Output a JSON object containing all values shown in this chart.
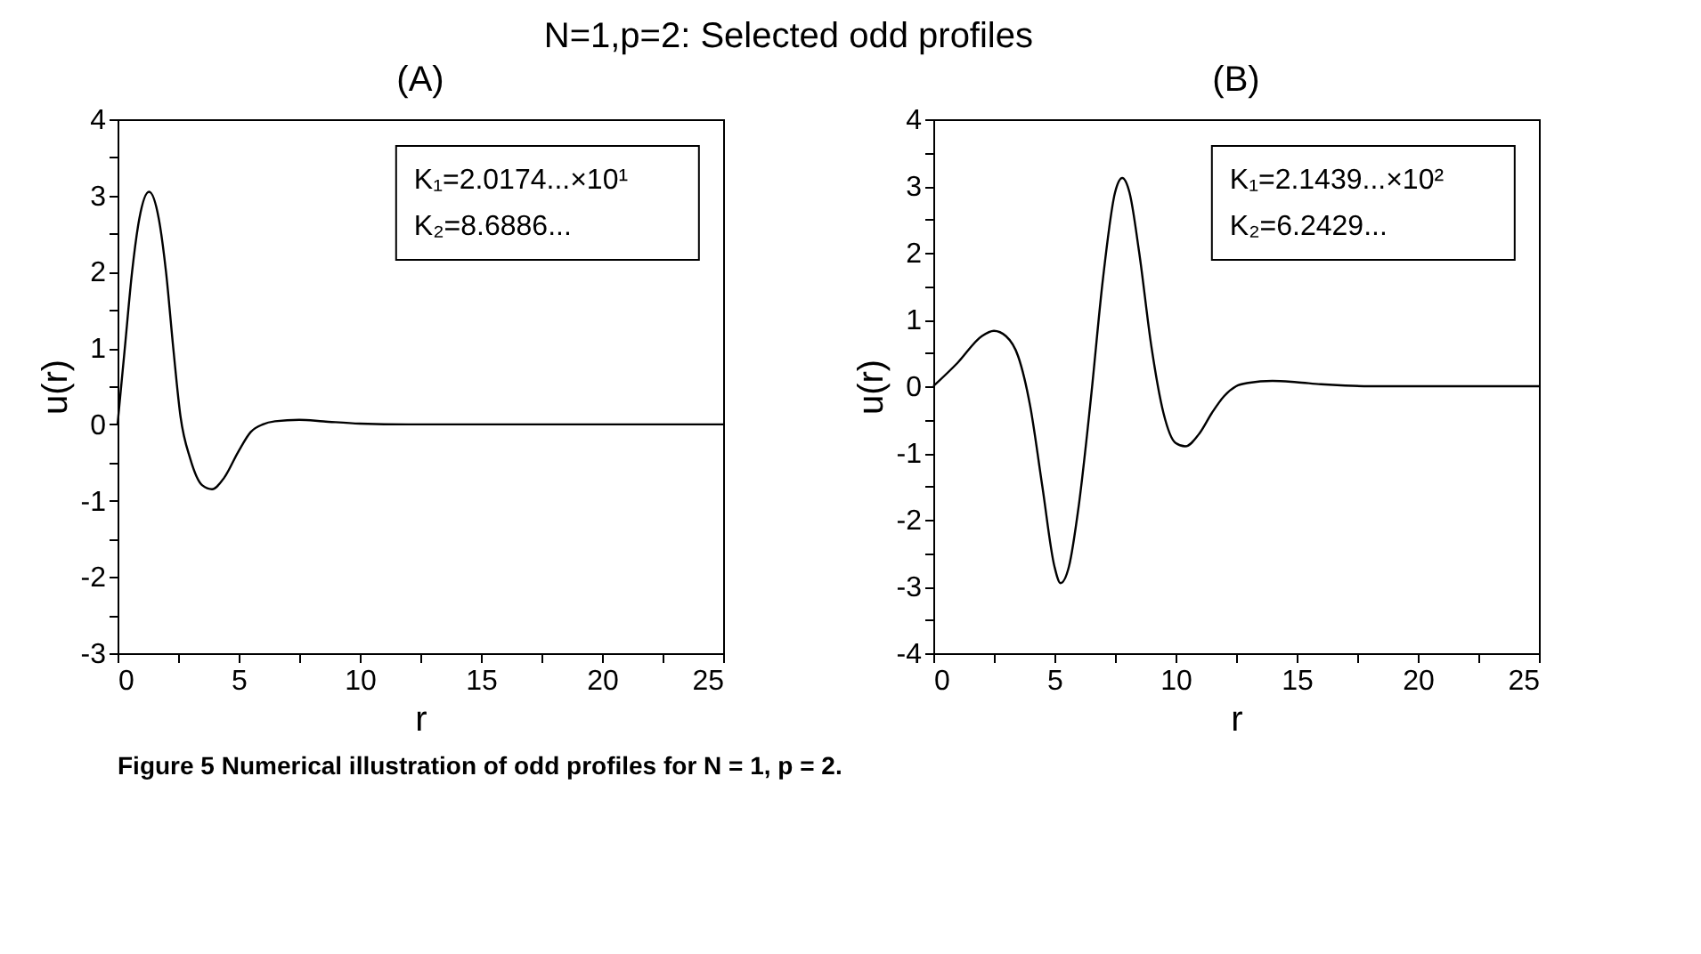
{
  "chart_data": [
    {
      "type": "line",
      "title": "(A)",
      "xlabel": "r",
      "ylabel": "u(r)",
      "grid": false,
      "marker": "none",
      "line_style": "solid",
      "annotations": [
        "N=1,p=2: Selected odd profiles",
        "Figure 5  Numerical illustration of odd profiles for N = 1, p = 2.",
        "K₁=2.0174...×10¹",
        "K₂=8.6886..."
      ],
      "xlim": [
        0,
        25
      ],
      "ylim": [
        -3,
        4
      ],
      "xticks": [
        0,
        {
          "value": 2.5,
          "label": null
        },
        5,
        {
          "value": 7.5,
          "label": null
        },
        10,
        {
          "value": 12.5,
          "label": null
        },
        15,
        {
          "value": 17.5,
          "label": null
        },
        20,
        {
          "value": 22.5,
          "label": null
        },
        25
      ],
      "yticks": [
        -3,
        {
          "value": -2.5,
          "label": null
        },
        -2,
        {
          "value": -1.5,
          "label": null
        },
        -1,
        {
          "value": -0.5,
          "label": null
        },
        0,
        {
          "value": 0.5,
          "label": null
        },
        1,
        {
          "value": 1.5,
          "label": null
        },
        2,
        {
          "value": 2.5,
          "label": null
        },
        3,
        {
          "value": 3.5,
          "label": null
        },
        4
      ],
      "series": [
        {
          "color": "#000000",
          "x": [
            0,
            0.3,
            0.6,
            0.9,
            1.3,
            1.7,
            2.0,
            2.3,
            2.6,
            3.0,
            3.5,
            3.9,
            4.4,
            5.0,
            5.5,
            6.0,
            6.5,
            7.5,
            8.5,
            10,
            12,
            15,
            20,
            25
          ],
          "values": [
            0,
            1.0,
            2.0,
            2.7,
            3.05,
            2.7,
            2.0,
            1.0,
            0.1,
            -0.45,
            -0.8,
            -0.85,
            -0.7,
            -0.35,
            -0.1,
            0.0,
            0.04,
            0.06,
            0.04,
            0.01,
            0,
            0,
            0,
            0
          ]
        }
      ]
    },
    {
      "type": "line",
      "title": "(B)",
      "xlabel": "r",
      "ylabel": "u(r)",
      "grid": false,
      "marker": "none",
      "line_style": "solid",
      "annotations": [
        "K₁=2.1439...×10²",
        "K₂=6.2429..."
      ],
      "xlim": [
        0,
        25
      ],
      "ylim": [
        -4,
        4
      ],
      "xticks": [
        0,
        {
          "value": 2.5,
          "label": null
        },
        5,
        {
          "value": 7.5,
          "label": null
        },
        10,
        {
          "value": 12.5,
          "label": null
        },
        15,
        {
          "value": 17.5,
          "label": null
        },
        20,
        {
          "value": 22.5,
          "label": null
        },
        25
      ],
      "yticks": [
        -4,
        {
          "value": -3.5,
          "label": null
        },
        -3,
        {
          "value": -2.5,
          "label": null
        },
        -2,
        {
          "value": -1.5,
          "label": null
        },
        -1,
        {
          "value": -0.5,
          "label": null
        },
        0,
        {
          "value": 0.5,
          "label": null
        },
        1,
        {
          "value": 1.5,
          "label": null
        },
        2,
        {
          "value": 2.5,
          "label": null
        },
        3,
        {
          "value": 3.5,
          "label": null
        },
        4
      ],
      "series": [
        {
          "color": "#000000",
          "x": [
            0,
            1,
            2,
            2.5,
            3,
            3.5,
            4,
            4.5,
            5,
            5.25,
            5.6,
            6,
            6.5,
            7,
            7.5,
            7.8,
            8.1,
            8.5,
            9,
            9.5,
            10,
            10.4,
            11,
            11.5,
            12,
            12.5,
            13,
            14,
            15,
            16,
            17,
            18,
            20,
            25
          ],
          "values": [
            0,
            0.35,
            0.75,
            0.83,
            0.75,
            0.45,
            -0.3,
            -1.5,
            -2.7,
            -2.95,
            -2.7,
            -1.8,
            -0.2,
            1.6,
            2.9,
            3.12,
            2.9,
            2.0,
            0.6,
            -0.4,
            -0.85,
            -0.9,
            -0.7,
            -0.4,
            -0.15,
            0.0,
            0.05,
            0.08,
            0.06,
            0.03,
            0.01,
            0,
            0,
            0
          ]
        }
      ]
    }
  ]
}
